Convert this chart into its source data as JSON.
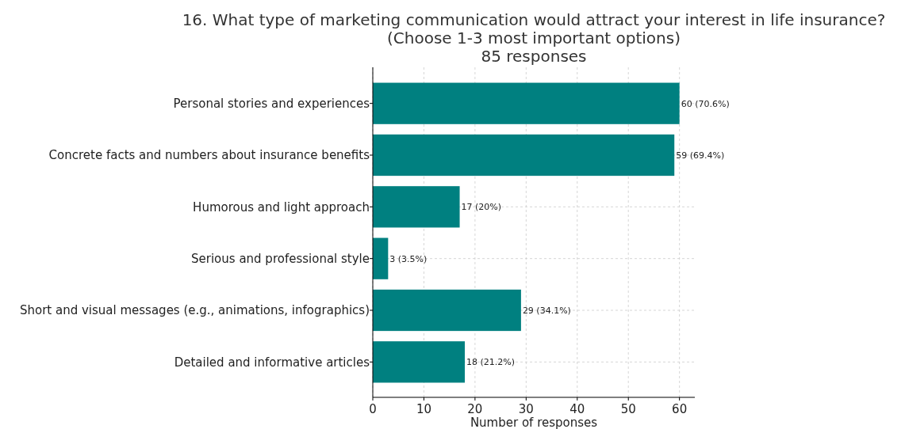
{
  "chart_data": {
    "type": "bar",
    "orientation": "horizontal",
    "title": "16. What type of marketing communication would attract your interest in life insurance?\n(Choose 1-3 most important options)\n85 responses",
    "xlabel": "Number of responses",
    "categories": [
      "Personal stories and experiences",
      "Concrete facts and numbers about insurance benefits",
      "Humorous and light approach",
      "Serious and professional style",
      "Short and visual messages (e.g., animations, infographics)",
      "Detailed and informative articles"
    ],
    "values": [
      60,
      59,
      17,
      3,
      29,
      18
    ],
    "value_labels": [
      "60 (70.6%)",
      "59 (69.4%)",
      "17 (20%)",
      "3 (3.5%)",
      "29 (34.1%)",
      "18 (21.2%)"
    ],
    "color": "#008080",
    "xlim": [
      0,
      63
    ],
    "xticks": [
      0,
      10,
      20,
      30,
      40,
      50,
      60
    ],
    "grid": true
  }
}
